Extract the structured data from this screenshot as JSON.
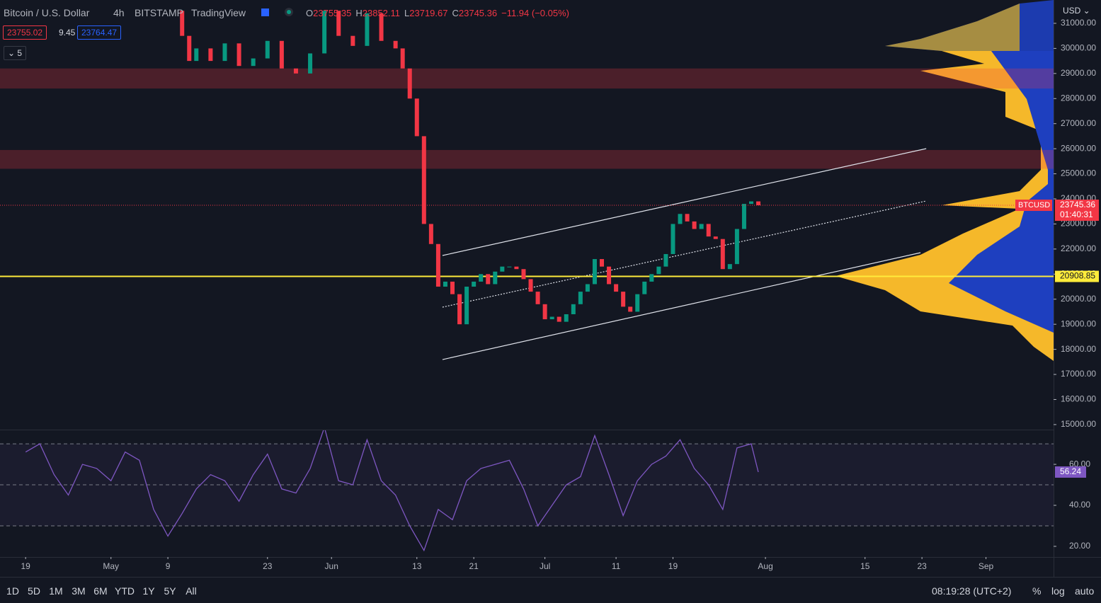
{
  "header": {
    "symbol": "Bitcoin / U.S. Dollar",
    "interval": "4h",
    "exchange": "BITSTAMP",
    "source": "TradingView",
    "ohlc": [
      {
        "key": "O",
        "value": "23755.35"
      },
      {
        "key": "H",
        "value": "23852.11"
      },
      {
        "key": "L",
        "value": "23719.67"
      },
      {
        "key": "C",
        "value": "23745.36"
      }
    ],
    "change": "−11.94 (−0.05%)",
    "bid": "23755.02",
    "spread": "9.45",
    "ask": "23764.47",
    "indicators": "5",
    "currency": "USD"
  },
  "price_chart": {
    "type": "candlestick",
    "x": [
      21,
      22,
      23,
      24,
      26,
      28,
      30,
      32,
      34,
      36,
      38,
      40,
      42,
      44,
      46,
      48,
      50,
      52,
      53,
      54,
      55,
      56,
      57,
      58,
      59,
      60,
      61,
      62,
      63,
      64,
      65,
      66,
      67,
      68,
      69,
      70,
      71,
      72,
      73,
      74,
      75,
      76,
      77,
      78,
      79,
      80,
      81,
      82,
      83,
      84,
      85,
      86,
      87,
      88,
      89,
      90,
      91,
      92,
      93,
      94,
      95,
      96,
      97,
      98,
      99,
      100,
      101,
      102,
      103
    ],
    "values": [
      31500,
      30500,
      29500,
      30000,
      29500,
      30200,
      29300,
      29600,
      30300,
      29200,
      29000,
      29800,
      31500,
      30500,
      30100,
      31400,
      30300,
      30000,
      29200,
      28000,
      26500,
      23000,
      22200,
      20500,
      20700,
      20200,
      19000,
      20500,
      20700,
      21000,
      20600,
      21100,
      21300,
      21300,
      21200,
      20800,
      20300,
      19800,
      19200,
      19300,
      19100,
      19400,
      19800,
      20300,
      20600,
      21600,
      21300,
      20600,
      20300,
      19700,
      19500,
      20200,
      20700,
      21000,
      21300,
      21800,
      23000,
      23400,
      23100,
      22800,
      23000,
      22500,
      22400,
      21200,
      21400,
      22800,
      23800,
      23900,
      23745.36
    ],
    "up_color": "#089981",
    "down_color": "#f23645",
    "xlim": [
      -3.6,
      144.5
    ],
    "ylim": [
      14800,
      31930
    ],
    "yticks": [
      {
        "value": 31000,
        "label": "31000.00"
      },
      {
        "value": 30000,
        "label": "30000.00"
      },
      {
        "value": 29000,
        "label": "29000.00"
      },
      {
        "value": 28000,
        "label": "28000.00"
      },
      {
        "value": 27000,
        "label": "27000.00"
      },
      {
        "value": 26000,
        "label": "26000.00"
      },
      {
        "value": 25000,
        "label": "25000.00"
      },
      {
        "value": 24000,
        "label": "24000.00"
      },
      {
        "value": 23000,
        "label": "23000.00"
      },
      {
        "value": 22000,
        "label": "22000.00"
      },
      {
        "value": 21000,
        "label": "21000.00"
      },
      {
        "value": 20000,
        "label": "20000.00"
      },
      {
        "value": 19000,
        "label": "19000.00"
      },
      {
        "value": 18000,
        "label": "18000.00"
      },
      {
        "value": 17000,
        "label": "17000.00"
      },
      {
        "value": 16000,
        "label": "16000.00"
      },
      {
        "value": 15000,
        "label": "15000.00"
      }
    ],
    "xticks": [
      {
        "value": 0,
        "label": "19"
      },
      {
        "value": 12,
        "label": "May"
      },
      {
        "value": 20,
        "label": "9"
      },
      {
        "value": 34,
        "label": "23"
      },
      {
        "value": 43,
        "label": "Jun"
      },
      {
        "value": 55,
        "label": "13"
      },
      {
        "value": 63,
        "label": "21"
      },
      {
        "value": 73,
        "label": "Jul"
      },
      {
        "value": 83,
        "label": "11"
      },
      {
        "value": 91,
        "label": "19"
      },
      {
        "value": 104,
        "label": "Aug"
      },
      {
        "value": 118,
        "label": "15"
      },
      {
        "value": 126,
        "label": "23"
      },
      {
        "value": 135,
        "label": "Sep"
      }
    ],
    "symbol_tag": "BTCUSD",
    "last_price_label": "23745.36",
    "countdown": "01:40:31",
    "level": {
      "value": 20908.85,
      "label": "20908.85"
    },
    "zones": [
      [
        28400,
        29200
      ],
      [
        25200,
        25950
      ]
    ],
    "channel": {
      "upper": [
        [
          58.6,
          21742
        ],
        [
          126.6,
          26004
        ]
      ],
      "middle": [
        [
          58.6,
          19682
        ],
        [
          126.6,
          23916
        ]
      ],
      "lower": [
        [
          58.6,
          17593
        ],
        [
          125.8,
          21855
        ]
      ]
    }
  },
  "rsi": {
    "type": "line",
    "color": "#7e57c2",
    "x": [
      0,
      2,
      4,
      6,
      8,
      10,
      12,
      14,
      16,
      18,
      20,
      22,
      24,
      26,
      28,
      30,
      32,
      34,
      36,
      38,
      40,
      42,
      44,
      46,
      48,
      50,
      52,
      54,
      56,
      58,
      60,
      62,
      64,
      66,
      68,
      70,
      72,
      74,
      76,
      78,
      80,
      82,
      84,
      86,
      88,
      90,
      92,
      94,
      96,
      98,
      100,
      102,
      103
    ],
    "values": [
      66,
      70,
      55,
      45,
      60,
      58,
      52,
      66,
      62,
      38,
      25,
      36,
      48,
      55,
      52,
      42,
      55,
      65,
      48,
      46,
      58,
      78,
      52,
      50,
      72,
      52,
      45,
      30,
      18,
      38,
      33,
      52,
      58,
      60,
      62,
      48,
      30,
      40,
      50,
      54,
      74,
      55,
      35,
      52,
      60,
      64,
      72,
      58,
      50,
      38,
      68,
      70,
      56.24
    ],
    "ylim": [
      14.8,
      76.6
    ],
    "yticks": [
      {
        "value": 60,
        "label": "60.00"
      },
      {
        "value": 40,
        "label": "40.00"
      },
      {
        "value": 20,
        "label": "20.00"
      }
    ],
    "levels": [
      70,
      50,
      30
    ],
    "last_label": "56.24"
  },
  "toolbar": {
    "ranges": [
      "1D",
      "5D",
      "1M",
      "3M",
      "6M",
      "YTD",
      "1Y",
      "5Y",
      "All"
    ],
    "clock": "08:19:28 (UTC+2)",
    "percent": "%",
    "log": "log",
    "auto": "auto"
  }
}
